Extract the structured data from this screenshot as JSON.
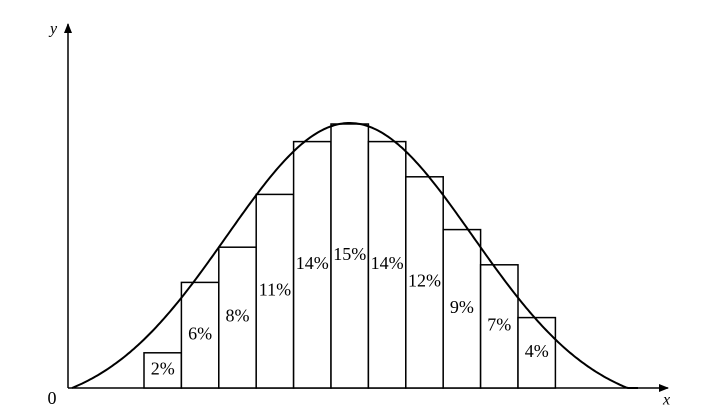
{
  "chart_data": {
    "type": "bar",
    "values": [
      2,
      6,
      8,
      11,
      14,
      15,
      14,
      12,
      9,
      7,
      4
    ],
    "value_labels": [
      "2%",
      "6%",
      "8%",
      "11%",
      "14%",
      "15%",
      "14%",
      "12%",
      "9%",
      "7%",
      "4%"
    ],
    "x_label": "x",
    "y_label": "y",
    "ylim": [
      0,
      20
    ],
    "yticks": [
      0
    ],
    "color": "#ffffff",
    "grid": false
  }
}
